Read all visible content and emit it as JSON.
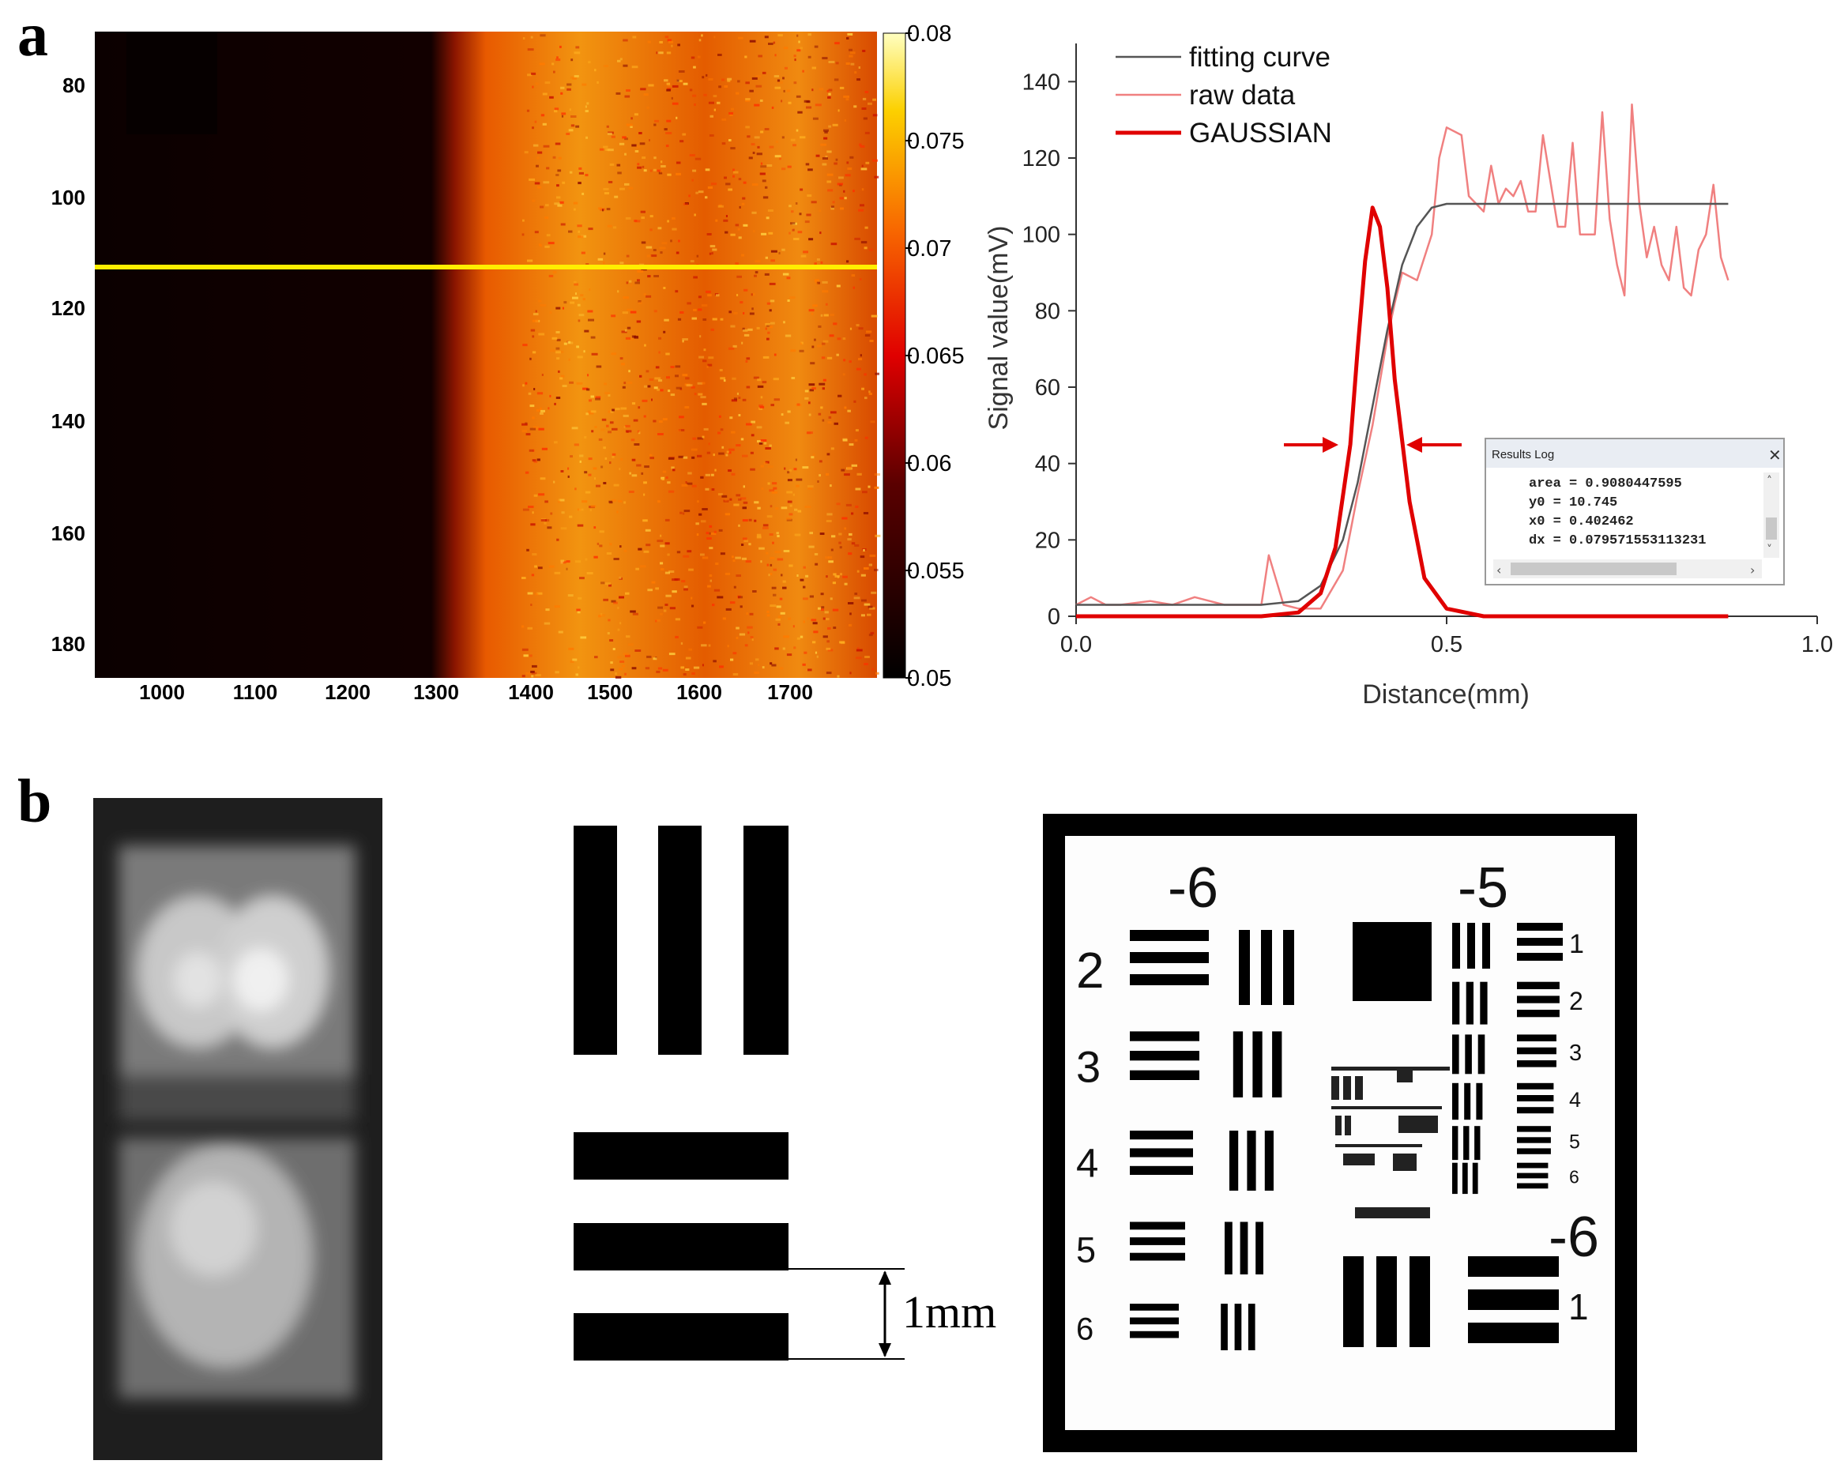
{
  "panels": {
    "a": "a",
    "b": "b"
  },
  "heatmap": {
    "y_ticks": [
      "80",
      "100",
      "120",
      "140",
      "160",
      "180"
    ],
    "x_ticks": [
      "1000",
      "1100",
      "1200",
      "1300",
      "1400",
      "1500",
      "1600",
      "1700"
    ],
    "colorbar_ticks": [
      "0.08",
      "0.075",
      "0.07",
      "0.065",
      "0.06",
      "0.055",
      "0.05"
    ]
  },
  "chart_data": {
    "type": "line",
    "xlabel": "Distance(mm)",
    "ylabel": "Signal value(mV)",
    "xlim": [
      0.0,
      1.0
    ],
    "ylim": [
      0,
      150
    ],
    "x_ticks": [
      "0.0",
      "0.5",
      "1.0"
    ],
    "y_ticks": [
      "0",
      "20",
      "40",
      "60",
      "80",
      "100",
      "120",
      "140"
    ],
    "legend": [
      "fitting curve",
      "raw data",
      "GAUSSIAN"
    ],
    "series": [
      {
        "name": "fitting curve",
        "color": "#555555",
        "x": [
          0.0,
          0.1,
          0.2,
          0.25,
          0.3,
          0.33,
          0.36,
          0.38,
          0.4,
          0.42,
          0.44,
          0.46,
          0.48,
          0.5,
          0.6,
          0.7,
          0.8,
          0.88
        ],
        "y": [
          3,
          3,
          3,
          3,
          4,
          8,
          20,
          35,
          55,
          75,
          92,
          102,
          107,
          108,
          108,
          108,
          108,
          108
        ]
      },
      {
        "name": "raw data",
        "color": "#f08080",
        "x": [
          0.0,
          0.02,
          0.04,
          0.06,
          0.1,
          0.13,
          0.16,
          0.2,
          0.25,
          0.26,
          0.28,
          0.3,
          0.33,
          0.36,
          0.38,
          0.4,
          0.42,
          0.43,
          0.44,
          0.46,
          0.48,
          0.49,
          0.5,
          0.52,
          0.53,
          0.55,
          0.56,
          0.57,
          0.58,
          0.59,
          0.6,
          0.61,
          0.62,
          0.63,
          0.65,
          0.66,
          0.67,
          0.68,
          0.7,
          0.71,
          0.72,
          0.73,
          0.74,
          0.75,
          0.76,
          0.77,
          0.78,
          0.79,
          0.8,
          0.81,
          0.82,
          0.83,
          0.84,
          0.85,
          0.86,
          0.87,
          0.88
        ],
        "y": [
          3,
          5,
          3,
          3,
          4,
          3,
          5,
          3,
          3,
          16,
          3,
          2,
          2,
          12,
          32,
          50,
          73,
          82,
          90,
          88,
          100,
          120,
          128,
          126,
          110,
          106,
          118,
          108,
          112,
          110,
          114,
          106,
          106,
          126,
          102,
          102,
          124,
          100,
          100,
          132,
          104,
          92,
          84,
          134,
          108,
          94,
          102,
          92,
          88,
          102,
          86,
          84,
          96,
          100,
          113,
          94,
          88
        ]
      },
      {
        "name": "GAUSSIAN",
        "color": "#e00000",
        "x": [
          0.0,
          0.25,
          0.3,
          0.33,
          0.35,
          0.37,
          0.38,
          0.39,
          0.4,
          0.41,
          0.42,
          0.43,
          0.45,
          0.47,
          0.5,
          0.55,
          0.88
        ],
        "y": [
          0,
          0,
          1,
          6,
          18,
          45,
          70,
          93,
          107,
          102,
          86,
          62,
          30,
          10,
          2,
          0,
          0
        ]
      }
    ]
  },
  "results_log": {
    "title": "Results Log",
    "lines": [
      "area = 0.9080447595",
      "y0 = 10.745",
      "x0 = 0.402462",
      "dx = 0.079571553113231"
    ]
  },
  "schematic": {
    "scale_label": "1mm"
  },
  "usaf_target": {
    "group_left": "-6",
    "group_right": "-5",
    "group_lower": "-6",
    "left_numbers": [
      "2",
      "3",
      "4",
      "5",
      "6"
    ],
    "right_numbers": [
      "1",
      "2",
      "3",
      "4",
      "5",
      "6"
    ],
    "lower_right_number": "1"
  }
}
